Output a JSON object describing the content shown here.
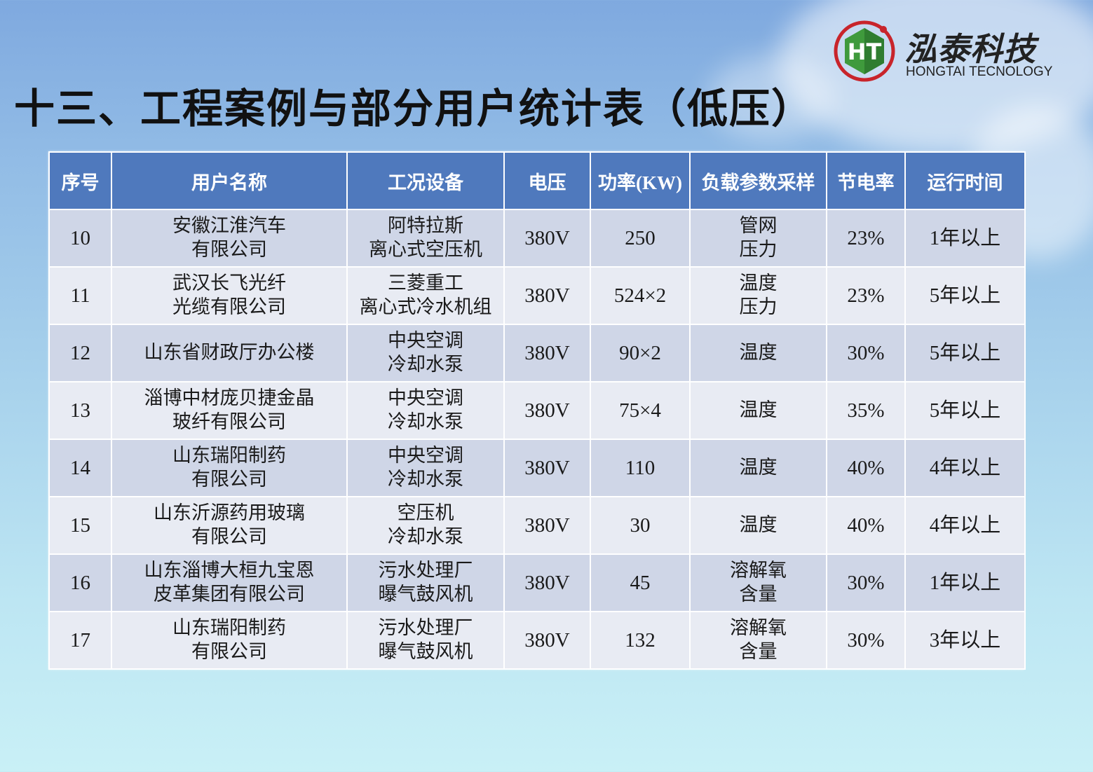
{
  "title": "十三、工程案例与部分用户统计表（低压）",
  "logo": {
    "mark_text": "HT",
    "name_cn": "泓泰科技",
    "name_en": "HONGTAI TECNOLOGY"
  },
  "colors": {
    "header_bg": "#4f79bd",
    "row_odd": "#cfd6e7",
    "row_even": "#e8ebf3",
    "logo_red": "#c8242b",
    "logo_green": "#3f9a3c"
  },
  "table": {
    "headers": {
      "seq": "序号",
      "user": "用户名称",
      "equipment": "工况设备",
      "voltage": "电压",
      "power": "功率",
      "power_unit": "(KW)",
      "sampling": "负载参数采样",
      "saving": "节电率",
      "runtime": "运行时间"
    },
    "rows": [
      {
        "seq": "10",
        "user": [
          "安徽江淮汽车",
          "有限公司"
        ],
        "equipment": [
          "阿特拉斯",
          "离心式空压机"
        ],
        "voltage": "380V",
        "power": "250",
        "sampling": [
          "管网",
          "压力"
        ],
        "saving": "23%",
        "runtime": "1年以上"
      },
      {
        "seq": "11",
        "user": [
          "武汉长飞光纤",
          "光缆有限公司"
        ],
        "equipment": [
          "三菱重工",
          "离心式冷水机组"
        ],
        "voltage": "380V",
        "power": "524×2",
        "sampling": [
          "温度",
          "压力"
        ],
        "saving": "23%",
        "runtime": "5年以上"
      },
      {
        "seq": "12",
        "user": [
          "山东省财政厅办公楼"
        ],
        "equipment": [
          "中央空调",
          "冷却水泵"
        ],
        "voltage": "380V",
        "power": "90×2",
        "sampling": [
          "温度"
        ],
        "saving": "30%",
        "runtime": "5年以上"
      },
      {
        "seq": "13",
        "user": [
          "淄博中材庞贝捷金晶",
          "玻纤有限公司"
        ],
        "equipment": [
          "中央空调",
          "冷却水泵"
        ],
        "voltage": "380V",
        "power": "75×4",
        "sampling": [
          "温度"
        ],
        "saving": "35%",
        "runtime": "5年以上"
      },
      {
        "seq": "14",
        "user": [
          "山东瑞阳制药",
          "有限公司"
        ],
        "equipment": [
          "中央空调",
          "冷却水泵"
        ],
        "voltage": "380V",
        "power": "110",
        "sampling": [
          "温度"
        ],
        "saving": "40%",
        "runtime": "4年以上"
      },
      {
        "seq": "15",
        "user": [
          "山东沂源药用玻璃",
          "有限公司"
        ],
        "equipment": [
          "空压机",
          "冷却水泵"
        ],
        "voltage": "380V",
        "power": "30",
        "sampling": [
          "温度"
        ],
        "saving": "40%",
        "runtime": "4年以上"
      },
      {
        "seq": "16",
        "user": [
          "山东淄博大桓九宝恩",
          "皮革集团有限公司"
        ],
        "equipment": [
          "污水处理厂",
          "曝气鼓风机"
        ],
        "voltage": "380V",
        "power": "45",
        "sampling": [
          "溶解氧",
          "含量"
        ],
        "saving": "30%",
        "runtime": "1年以上"
      },
      {
        "seq": "17",
        "user": [
          "山东瑞阳制药",
          "有限公司"
        ],
        "equipment": [
          "污水处理厂",
          "曝气鼓风机"
        ],
        "voltage": "380V",
        "power": "132",
        "sampling": [
          "溶解氧",
          "含量"
        ],
        "saving": "30%",
        "runtime": "3年以上"
      }
    ]
  }
}
